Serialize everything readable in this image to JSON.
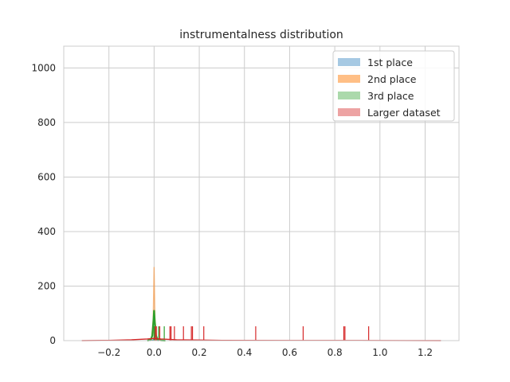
{
  "chart_data": {
    "type": "line",
    "title": "instrumentalness distribution",
    "xlabel": "",
    "ylabel": "",
    "xlim": [
      -0.4,
      1.35
    ],
    "ylim": [
      0,
      1080
    ],
    "x_ticks": [
      -0.2,
      0.0,
      0.2,
      0.4,
      0.6,
      0.8,
      1.0,
      1.2
    ],
    "x_tick_labels": [
      "−0.2",
      "0.0",
      "0.2",
      "0.4",
      "0.6",
      "0.8",
      "1.0",
      "1.2"
    ],
    "y_ticks": [
      0,
      200,
      400,
      600,
      800,
      1000
    ],
    "y_tick_labels": [
      "0",
      "200",
      "400",
      "600",
      "800",
      "1000"
    ],
    "grid": true,
    "legend_position": "top-right",
    "series": [
      {
        "name": "1st place",
        "color": "#1f77b4",
        "legend_color": "#a6c9e3",
        "kde": [
          [
            -0.02,
            0
          ],
          [
            -0.005,
            2
          ],
          [
            0.0,
            5
          ],
          [
            0.005,
            2
          ],
          [
            0.02,
            0
          ]
        ],
        "rug": []
      },
      {
        "name": "2nd place",
        "color": "#ff7f0e",
        "legend_color": "#ffbf86",
        "kde": [
          [
            -0.012,
            0
          ],
          [
            -0.004,
            80
          ],
          [
            0.0,
            270
          ],
          [
            0.004,
            80
          ],
          [
            0.012,
            0
          ]
        ],
        "rug": [
          0.0
        ]
      },
      {
        "name": "3rd place",
        "color": "#2ca02c",
        "legend_color": "#abd9ab",
        "kde": [
          [
            -0.03,
            0
          ],
          [
            -0.015,
            3
          ],
          [
            -0.008,
            18
          ],
          [
            -0.003,
            70
          ],
          [
            0.0,
            112
          ],
          [
            0.003,
            70
          ],
          [
            0.008,
            20
          ],
          [
            0.014,
            5
          ],
          [
            0.03,
            1
          ],
          [
            0.05,
            0
          ]
        ],
        "rug": [
          0.0,
          0.003,
          0.02,
          0.045
        ]
      },
      {
        "name": "Larger dataset",
        "color": "#d62728",
        "legend_color": "#eda3a3",
        "kde": [
          [
            -0.32,
            0
          ],
          [
            -0.2,
            1
          ],
          [
            -0.1,
            3
          ],
          [
            -0.03,
            6
          ],
          [
            0.0,
            8
          ],
          [
            0.03,
            6
          ],
          [
            0.1,
            3
          ],
          [
            0.3,
            1
          ],
          [
            0.6,
            0.5
          ],
          [
            0.9,
            0.5
          ],
          [
            1.27,
            0
          ]
        ],
        "rug": [
          0.005,
          0.01,
          0.025,
          0.07,
          0.075,
          0.09,
          0.13,
          0.165,
          0.17,
          0.22,
          0.45,
          0.66,
          0.84,
          0.845,
          0.95
        ]
      }
    ]
  }
}
